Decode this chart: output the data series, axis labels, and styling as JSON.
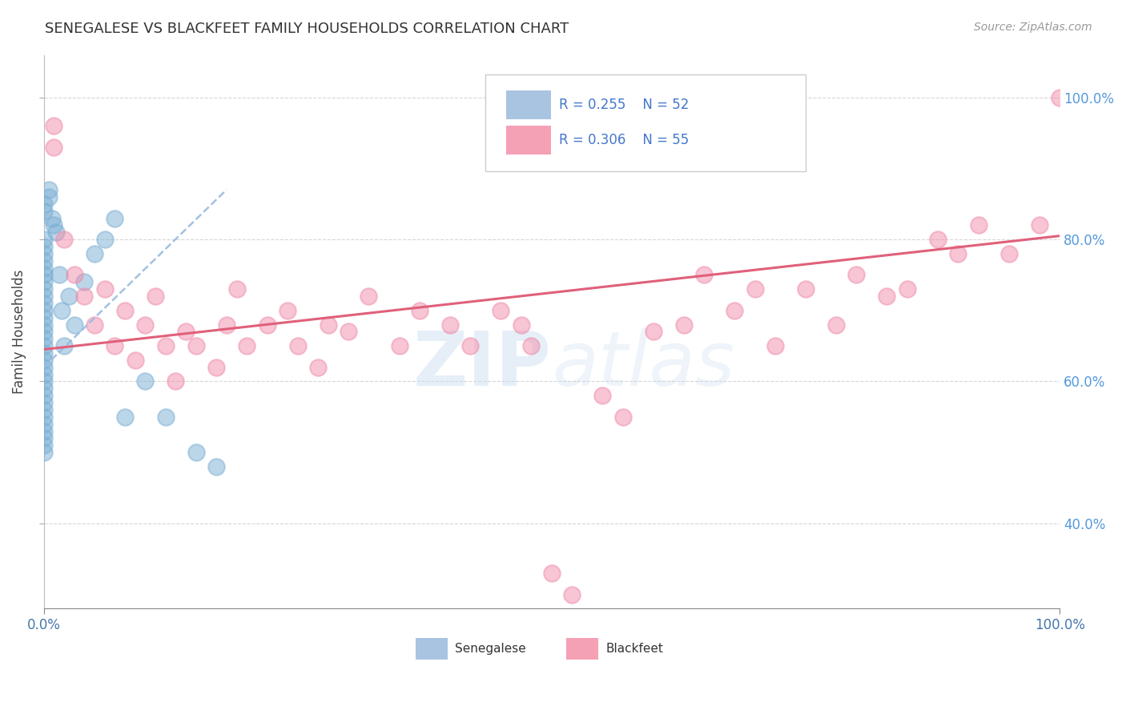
{
  "title": "SENEGALESE VS BLACKFEET FAMILY HOUSEHOLDS CORRELATION CHART",
  "source_text": "Source: ZipAtlas.com",
  "ylabel": "Family Households",
  "senegalese_color": "#7bafd4",
  "blackfeet_color": "#f08caa",
  "senegalese_trend_color": "#99bbdd",
  "blackfeet_trend_color": "#e0607a",
  "background_color": "#ffffff",
  "grid_color": "#cccccc",
  "title_color": "#333333",
  "source_color": "#999999",
  "right_label_color": "#5599dd",
  "watermark_color": "#ddeeff",
  "legend_blue_color": "#a8c4e0",
  "legend_pink_color": "#f4a0b5",
  "sen_R": "0.255",
  "sen_N": "52",
  "blk_R": "0.306",
  "blk_N": "55",
  "senegalese_label": "Senegalese",
  "blackfeet_label": "Blackfeet",
  "xlim": [
    0.0,
    1.0
  ],
  "ylim": [
    0.28,
    1.06
  ],
  "yticks": [
    0.4,
    0.6,
    0.8,
    1.0
  ],
  "ytick_labels": [
    "40.0%",
    "60.0%",
    "80.0%",
    "100.0%"
  ],
  "xticks": [
    0.0,
    1.0
  ],
  "xtick_labels": [
    "0.0%",
    "100.0%"
  ],
  "sen_x": [
    0.0,
    0.0,
    0.0,
    0.0,
    0.0,
    0.0,
    0.0,
    0.0,
    0.0,
    0.0,
    0.0,
    0.0,
    0.0,
    0.0,
    0.0,
    0.0,
    0.0,
    0.0,
    0.0,
    0.0,
    0.0,
    0.0,
    0.0,
    0.0,
    0.0,
    0.0,
    0.0,
    0.0,
    0.0,
    0.0,
    0.0,
    0.0,
    0.0,
    0.005,
    0.005,
    0.008,
    0.01,
    0.012,
    0.015,
    0.018,
    0.02,
    0.025,
    0.03,
    0.04,
    0.05,
    0.06,
    0.07,
    0.08,
    0.1,
    0.12,
    0.15,
    0.17
  ],
  "sen_y": [
    0.67,
    0.68,
    0.69,
    0.7,
    0.71,
    0.72,
    0.63,
    0.64,
    0.65,
    0.66,
    0.6,
    0.61,
    0.62,
    0.58,
    0.59,
    0.56,
    0.57,
    0.73,
    0.74,
    0.75,
    0.76,
    0.77,
    0.78,
    0.79,
    0.8,
    0.55,
    0.54,
    0.53,
    0.52,
    0.51,
    0.5,
    0.84,
    0.85,
    0.86,
    0.87,
    0.83,
    0.82,
    0.81,
    0.75,
    0.7,
    0.65,
    0.72,
    0.68,
    0.74,
    0.78,
    0.8,
    0.83,
    0.55,
    0.6,
    0.55,
    0.5,
    0.48
  ],
  "blk_x": [
    0.01,
    0.01,
    0.02,
    0.03,
    0.04,
    0.05,
    0.06,
    0.07,
    0.08,
    0.09,
    0.1,
    0.11,
    0.12,
    0.13,
    0.14,
    0.15,
    0.17,
    0.18,
    0.19,
    0.2,
    0.22,
    0.24,
    0.25,
    0.27,
    0.28,
    0.3,
    0.32,
    0.35,
    0.37,
    0.4,
    0.42,
    0.45,
    0.47,
    0.48,
    0.5,
    0.52,
    0.55,
    0.57,
    0.6,
    0.63,
    0.65,
    0.68,
    0.7,
    0.72,
    0.75,
    0.78,
    0.8,
    0.83,
    0.85,
    0.88,
    0.9,
    0.92,
    0.95,
    0.98,
    1.0
  ],
  "blk_y": [
    0.93,
    0.96,
    0.8,
    0.75,
    0.72,
    0.68,
    0.73,
    0.65,
    0.7,
    0.63,
    0.68,
    0.72,
    0.65,
    0.6,
    0.67,
    0.65,
    0.62,
    0.68,
    0.73,
    0.65,
    0.68,
    0.7,
    0.65,
    0.62,
    0.68,
    0.67,
    0.72,
    0.65,
    0.7,
    0.68,
    0.65,
    0.7,
    0.68,
    0.65,
    0.33,
    0.3,
    0.58,
    0.55,
    0.67,
    0.68,
    0.75,
    0.7,
    0.73,
    0.65,
    0.73,
    0.68,
    0.75,
    0.72,
    0.73,
    0.8,
    0.78,
    0.82,
    0.78,
    0.82,
    1.0
  ],
  "sen_trend_x0": 0.0,
  "sen_trend_y0": 0.62,
  "sen_trend_x1": 0.18,
  "sen_trend_y1": 0.87,
  "blk_trend_x0": 0.0,
  "blk_trend_y0": 0.645,
  "blk_trend_x1": 1.0,
  "blk_trend_y1": 0.805
}
